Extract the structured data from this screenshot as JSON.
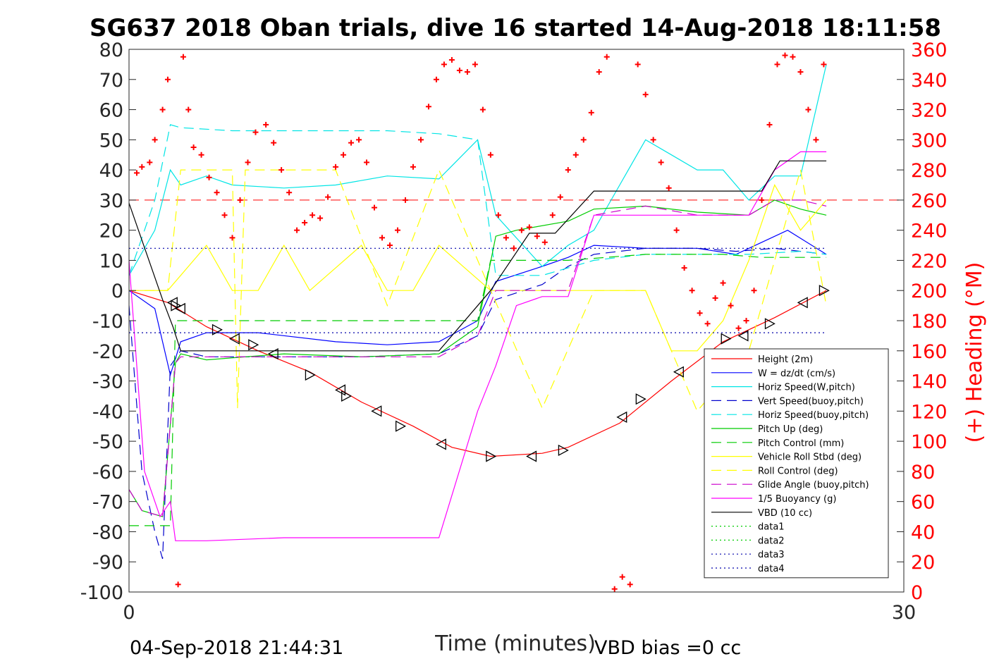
{
  "chart_data": {
    "type": "line",
    "title": "SG637 2018 Oban trials, dive 16 started 14-Aug-2018 18:11:58",
    "xlabel": "Time (minutes)",
    "ylabel": "",
    "y2label": "(+) Heading (°M)",
    "xlim": [
      0,
      30
    ],
    "ylim": [
      -100,
      80
    ],
    "y2lim": [
      0,
      360
    ],
    "xticks": [
      0,
      30
    ],
    "yticks": [
      80,
      70,
      60,
      50,
      40,
      30,
      20,
      10,
      0,
      -10,
      -20,
      -30,
      -40,
      -50,
      -60,
      -70,
      -80,
      -90,
      -100
    ],
    "y2ticks": [
      360,
      340,
      320,
      300,
      280,
      260,
      240,
      220,
      200,
      180,
      160,
      140,
      120,
      100,
      80,
      60,
      40,
      20,
      0
    ],
    "grid": false,
    "legend_position": "lower-right",
    "footer_left": "04-Sep-2018 21:44:31",
    "footer_right": "VBD bias =0 cc",
    "series": [
      {
        "name": "Height (2m)",
        "color": "#ff0000",
        "dash": "solid",
        "x": [
          0,
          1.5,
          3,
          5,
          7,
          9,
          11,
          12.5,
          14,
          16,
          17,
          19,
          21,
          23,
          25,
          27
        ],
        "y": [
          0,
          -4,
          -12,
          -20,
          -27,
          -37,
          -45,
          -52,
          -55,
          -54,
          -52,
          -44,
          -30,
          -17,
          -9,
          0
        ]
      },
      {
        "name": "W = dz/dt (cm/s)",
        "color": "#0000ff",
        "dash": "solid",
        "x": [
          0,
          1,
          1.6,
          2,
          3,
          5,
          8,
          10,
          12,
          13.5,
          14.2,
          16,
          17,
          18,
          20,
          22,
          23.5,
          24.5,
          25.5,
          27
        ],
        "y": [
          0,
          -6,
          -28,
          -17,
          -14,
          -14,
          -17,
          -18,
          -17,
          -10,
          3,
          8,
          11,
          15,
          14,
          14,
          12,
          16,
          20,
          12
        ]
      },
      {
        "name": "Horiz Speed(W,pitch)",
        "color": "#00e5e5",
        "dash": "solid",
        "x": [
          0,
          1,
          1.6,
          2,
          3,
          4,
          6,
          8,
          10,
          12,
          13.5,
          14.2,
          16,
          17,
          18,
          19,
          20,
          21,
          22,
          23,
          24,
          25,
          26,
          27
        ],
        "y": [
          5,
          20,
          40,
          35,
          38,
          35,
          34,
          35,
          38,
          37,
          50,
          25,
          8,
          15,
          20,
          35,
          50,
          45,
          40,
          40,
          30,
          38,
          38,
          75
        ]
      },
      {
        "name": "Vert Speed(buoy,pitch)",
        "color": "#0000cc",
        "dash": "long",
        "x": [
          0,
          0.5,
          1,
          1.3,
          1.6,
          2,
          3,
          6,
          9,
          12,
          13.5,
          14.2,
          16,
          17,
          18,
          20,
          22,
          23.5,
          25,
          27
        ],
        "y": [
          -5,
          -60,
          -80,
          -89,
          -25,
          -20,
          -22,
          -22,
          -22,
          -21,
          -15,
          -3,
          2,
          8,
          12,
          14,
          14,
          13,
          14,
          12
        ]
      },
      {
        "name": "Horiz Speed(buoy,pitch)",
        "color": "#00e5e5",
        "dash": "long",
        "x": [
          0,
          1,
          1.6,
          2,
          4,
          6,
          8,
          10,
          12,
          13.5,
          14.2,
          16,
          18,
          20,
          22,
          24,
          26,
          27
        ],
        "y": [
          5,
          30,
          55,
          54,
          53,
          53,
          53,
          53,
          52,
          50,
          5,
          5,
          10,
          12,
          12,
          12,
          13,
          12
        ]
      },
      {
        "name": "Pitch Up (deg)",
        "color": "#00cc00",
        "dash": "solid",
        "x": [
          0,
          0.5,
          1.3,
          1.8,
          2,
          3,
          6,
          9,
          12,
          13.5,
          14.2,
          15,
          17,
          18,
          20,
          22,
          24,
          25,
          26,
          27
        ],
        "y": [
          -66,
          -73,
          -75,
          -24,
          -21,
          -23,
          -21,
          -22,
          -21,
          -12,
          18,
          20,
          23,
          27,
          28,
          26,
          25,
          30,
          27,
          25
        ]
      },
      {
        "name": "Pitch Control (mm)",
        "color": "#00cc00",
        "dash": "long",
        "x": [
          0,
          1.6,
          1.8,
          5,
          9,
          12,
          13.5,
          14,
          17,
          20,
          23,
          24.5,
          26,
          27
        ],
        "y": [
          -78,
          -78,
          -10,
          -10,
          -10,
          -10,
          -10,
          10,
          10,
          12,
          12,
          11,
          11,
          11
        ]
      },
      {
        "name": "Vehicle Roll Stbd (deg)",
        "color": "#ffff00",
        "dash": "solid",
        "x": [
          0,
          1.5,
          2,
          3,
          4,
          5,
          6,
          7,
          9,
          10,
          11,
          12,
          14,
          16,
          18,
          20,
          21,
          22,
          23,
          24,
          25,
          26,
          27
        ],
        "y": [
          0,
          0,
          5,
          15,
          0,
          0,
          15,
          0,
          15,
          0,
          0,
          15,
          0,
          0,
          0,
          0,
          -20,
          -20,
          -10,
          10,
          35,
          20,
          30
        ]
      },
      {
        "name": "Roll Control (deg)",
        "color": "#ffff00",
        "dash": "long",
        "x": [
          0,
          1.5,
          2,
          4,
          4.2,
          4.5,
          8,
          10,
          12,
          14,
          16,
          18,
          20,
          22,
          24,
          26,
          27
        ],
        "y": [
          0,
          0,
          40,
          40,
          -39,
          40,
          40,
          -5,
          40,
          0,
          -39,
          0,
          0,
          -40,
          -20,
          40,
          -5
        ]
      },
      {
        "name": "Glide Angle (buoy,pitch)",
        "color": "#cc00cc",
        "dash": "long",
        "x": [
          0,
          0.5,
          1.3,
          1.8,
          2,
          5,
          9,
          12,
          13.5,
          14.2,
          16,
          17,
          18,
          20,
          22,
          24,
          25,
          26,
          27
        ],
        "y": [
          -66,
          -73,
          -75,
          -24,
          -22,
          -22,
          -22,
          -22,
          -15,
          0,
          0,
          0,
          25,
          28,
          25,
          25,
          30,
          30,
          28
        ]
      },
      {
        "name": "1/5 Buoyancy (g)",
        "color": "#ff00ff",
        "dash": "solid",
        "x": [
          0,
          0.6,
          1.2,
          1.6,
          1.8,
          3,
          6,
          10,
          12,
          13.5,
          14.2,
          15,
          16,
          17,
          18,
          20,
          22,
          24,
          25,
          26,
          27
        ],
        "y": [
          10,
          -60,
          -75,
          -70,
          -83,
          -83,
          -82,
          -82,
          -82,
          -40,
          -25,
          -5,
          -2,
          -2,
          25,
          25,
          25,
          25,
          40,
          46,
          46
        ]
      },
      {
        "name": "VBD (10 cc)",
        "color": "#000000",
        "dash": "solid",
        "x": [
          0,
          1.3,
          1.7,
          2,
          3,
          6,
          9,
          12,
          14,
          15.5,
          16.5,
          18,
          20,
          21,
          22,
          23,
          24,
          24.5,
          25.2,
          26,
          27
        ],
        "y": [
          29,
          -3,
          -12,
          -20,
          -20,
          -20,
          -20,
          -20,
          0,
          19,
          19,
          33,
          33,
          33,
          33,
          33,
          33,
          33,
          43,
          43,
          43
        ]
      },
      {
        "name": "data1",
        "color": "#00cc00",
        "dash": "dotted",
        "x": [],
        "y": []
      },
      {
        "name": "data2",
        "color": "#00cc00",
        "dash": "dotted",
        "x": [],
        "y": []
      },
      {
        "name": "data3",
        "color": "#0000aa",
        "dash": "dotted",
        "x": [
          0,
          27
        ],
        "y": [
          14,
          14
        ]
      },
      {
        "name": "data4",
        "color": "#0000aa",
        "dash": "dotted",
        "x": [
          0,
          27
        ],
        "y": [
          -14,
          -14
        ]
      }
    ],
    "reference_lines": [
      {
        "color": "#ff0000",
        "dash": "long",
        "y": 30
      }
    ],
    "markers": {
      "height_triangles": {
        "x": [
          1.7,
          1.8,
          2.0,
          3.4,
          4.1,
          4.8,
          5.6,
          7.0,
          8.2,
          8.4,
          9.6,
          10.5,
          12.1,
          14.0,
          15.6,
          16.8,
          19.1,
          19.8,
          21.3,
          23.1,
          23.8,
          24.8,
          26.1,
          26.9
        ],
        "y": [
          -4,
          -5,
          -6,
          -13,
          -16,
          -18,
          -21,
          -28,
          -33,
          -35,
          -40,
          -45,
          -51,
          -55,
          -55,
          -53,
          -42,
          -36,
          -27,
          -16,
          -15,
          -11,
          -4,
          0
        ]
      },
      "heading_points": {
        "x": [
          0.3,
          0.5,
          0.8,
          1.0,
          1.3,
          1.5,
          1.9,
          2.1,
          2.3,
          2.5,
          2.8,
          3.1,
          3.4,
          3.7,
          4.0,
          4.3,
          4.6,
          4.9,
          5.3,
          5.6,
          5.9,
          6.2,
          6.5,
          6.8,
          7.1,
          7.4,
          7.7,
          8.0,
          8.3,
          8.6,
          8.9,
          9.2,
          9.5,
          9.8,
          10.1,
          10.4,
          10.7,
          11.0,
          11.3,
          11.6,
          11.9,
          12.2,
          12.5,
          12.8,
          13.1,
          13.4,
          13.7,
          14.0,
          14.3,
          14.6,
          14.9,
          15.2,
          15.5,
          15.8,
          16.1,
          16.4,
          16.7,
          17.0,
          17.3,
          17.6,
          17.9,
          18.2,
          18.5,
          18.8,
          19.1,
          19.4,
          19.7,
          20.0,
          20.3,
          20.6,
          20.9,
          21.2,
          21.5,
          21.8,
          22.1,
          22.4,
          22.7,
          23.0,
          23.3,
          23.6,
          23.9,
          24.2,
          24.5,
          24.8,
          25.1,
          25.4,
          25.7,
          26.0,
          26.3,
          26.6,
          26.9
        ],
        "y": [
          278,
          282,
          285,
          300,
          320,
          340,
          5,
          355,
          320,
          295,
          290,
          275,
          265,
          250,
          235,
          260,
          285,
          305,
          310,
          298,
          280,
          265,
          240,
          245,
          250,
          248,
          262,
          282,
          290,
          298,
          300,
          285,
          255,
          235,
          230,
          240,
          260,
          282,
          300,
          322,
          340,
          350,
          353,
          346,
          345,
          350,
          320,
          290,
          250,
          235,
          228,
          240,
          242,
          236,
          232,
          250,
          262,
          280,
          290,
          300,
          318,
          345,
          355,
          2,
          10,
          5,
          350,
          330,
          300,
          285,
          268,
          240,
          215,
          200,
          185,
          178,
          195,
          205,
          190,
          175,
          180,
          200,
          260,
          310,
          350,
          356,
          355,
          345,
          320,
          300,
          350
        ]
      }
    }
  }
}
